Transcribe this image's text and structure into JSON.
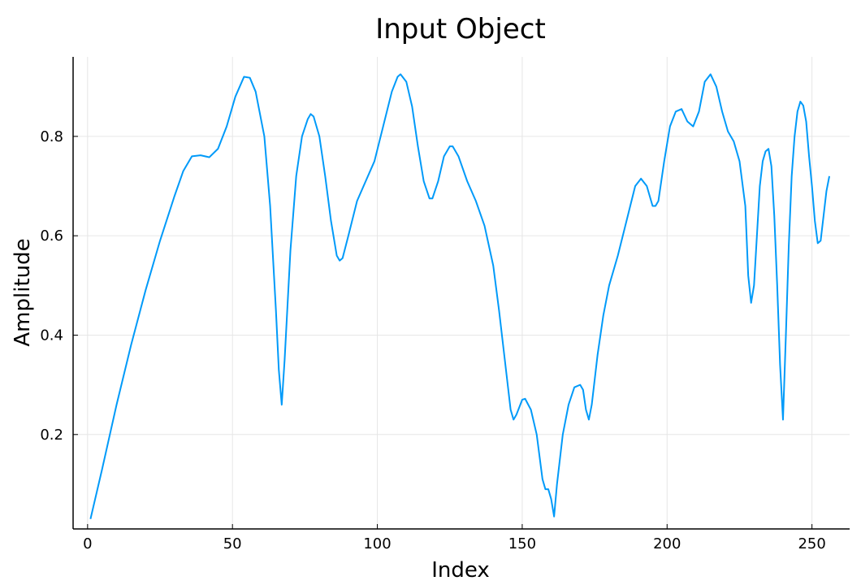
{
  "chart_data": {
    "type": "line",
    "title": "Input Object",
    "xlabel": "Index",
    "ylabel": "Amplitude",
    "xlim": [
      -5,
      263
    ],
    "ylim": [
      0.01,
      0.96
    ],
    "xticks": [
      0,
      50,
      100,
      150,
      200,
      250
    ],
    "yticks": [
      0.2,
      0.4,
      0.6,
      0.8
    ],
    "grid": true,
    "legend": "none",
    "series": [
      {
        "color": "#009af9",
        "points": [
          [
            1,
            0.03
          ],
          [
            5,
            0.13
          ],
          [
            10,
            0.26
          ],
          [
            15,
            0.38
          ],
          [
            20,
            0.49
          ],
          [
            25,
            0.59
          ],
          [
            30,
            0.68
          ],
          [
            33,
            0.73
          ],
          [
            36,
            0.76
          ],
          [
            39,
            0.762
          ],
          [
            42,
            0.758
          ],
          [
            45,
            0.775
          ],
          [
            48,
            0.82
          ],
          [
            51,
            0.88
          ],
          [
            54,
            0.92
          ],
          [
            56,
            0.918
          ],
          [
            58,
            0.89
          ],
          [
            61,
            0.8
          ],
          [
            63,
            0.66
          ],
          [
            65,
            0.45
          ],
          [
            66,
            0.33
          ],
          [
            67,
            0.26
          ],
          [
            68,
            0.35
          ],
          [
            70,
            0.57
          ],
          [
            72,
            0.72
          ],
          [
            74,
            0.8
          ],
          [
            76,
            0.835
          ],
          [
            77,
            0.845
          ],
          [
            78,
            0.84
          ],
          [
            80,
            0.8
          ],
          [
            82,
            0.72
          ],
          [
            84,
            0.63
          ],
          [
            86,
            0.56
          ],
          [
            87,
            0.55
          ],
          [
            88,
            0.555
          ],
          [
            90,
            0.6
          ],
          [
            93,
            0.67
          ],
          [
            96,
            0.71
          ],
          [
            99,
            0.75
          ],
          [
            102,
            0.82
          ],
          [
            105,
            0.89
          ],
          [
            107,
            0.92
          ],
          [
            108,
            0.925
          ],
          [
            110,
            0.91
          ],
          [
            112,
            0.86
          ],
          [
            114,
            0.78
          ],
          [
            116,
            0.71
          ],
          [
            118,
            0.675
          ],
          [
            119,
            0.675
          ],
          [
            121,
            0.71
          ],
          [
            123,
            0.76
          ],
          [
            125,
            0.78
          ],
          [
            126,
            0.78
          ],
          [
            128,
            0.76
          ],
          [
            131,
            0.71
          ],
          [
            134,
            0.67
          ],
          [
            137,
            0.62
          ],
          [
            140,
            0.54
          ],
          [
            142,
            0.45
          ],
          [
            144,
            0.35
          ],
          [
            146,
            0.25
          ],
          [
            147,
            0.23
          ],
          [
            148,
            0.24
          ],
          [
            150,
            0.27
          ],
          [
            151,
            0.272
          ],
          [
            153,
            0.25
          ],
          [
            155,
            0.2
          ],
          [
            157,
            0.11
          ],
          [
            158,
            0.09
          ],
          [
            159,
            0.09
          ],
          [
            160,
            0.07
          ],
          [
            161,
            0.035
          ],
          [
            162,
            0.1
          ],
          [
            164,
            0.2
          ],
          [
            166,
            0.26
          ],
          [
            168,
            0.295
          ],
          [
            170,
            0.3
          ],
          [
            171,
            0.29
          ],
          [
            172,
            0.25
          ],
          [
            173,
            0.23
          ],
          [
            174,
            0.26
          ],
          [
            176,
            0.36
          ],
          [
            178,
            0.44
          ],
          [
            180,
            0.5
          ],
          [
            183,
            0.56
          ],
          [
            186,
            0.63
          ],
          [
            189,
            0.7
          ],
          [
            191,
            0.715
          ],
          [
            193,
            0.7
          ],
          [
            195,
            0.66
          ],
          [
            196,
            0.66
          ],
          [
            197,
            0.67
          ],
          [
            199,
            0.75
          ],
          [
            201,
            0.82
          ],
          [
            203,
            0.85
          ],
          [
            205,
            0.855
          ],
          [
            207,
            0.83
          ],
          [
            209,
            0.82
          ],
          [
            211,
            0.85
          ],
          [
            213,
            0.91
          ],
          [
            215,
            0.925
          ],
          [
            217,
            0.9
          ],
          [
            219,
            0.85
          ],
          [
            221,
            0.81
          ],
          [
            223,
            0.79
          ],
          [
            225,
            0.75
          ],
          [
            227,
            0.66
          ],
          [
            228,
            0.52
          ],
          [
            229,
            0.465
          ],
          [
            230,
            0.5
          ],
          [
            231,
            0.6
          ],
          [
            232,
            0.7
          ],
          [
            233,
            0.75
          ],
          [
            234,
            0.77
          ],
          [
            235,
            0.775
          ],
          [
            236,
            0.74
          ],
          [
            237,
            0.64
          ],
          [
            238,
            0.5
          ],
          [
            239,
            0.34
          ],
          [
            240,
            0.23
          ],
          [
            241,
            0.4
          ],
          [
            242,
            0.58
          ],
          [
            243,
            0.72
          ],
          [
            244,
            0.8
          ],
          [
            245,
            0.85
          ],
          [
            246,
            0.87
          ],
          [
            247,
            0.862
          ],
          [
            248,
            0.83
          ],
          [
            249,
            0.76
          ],
          [
            250,
            0.7
          ],
          [
            251,
            0.63
          ],
          [
            252,
            0.585
          ],
          [
            253,
            0.59
          ],
          [
            254,
            0.64
          ],
          [
            255,
            0.69
          ],
          [
            256,
            0.72
          ]
        ]
      }
    ]
  }
}
